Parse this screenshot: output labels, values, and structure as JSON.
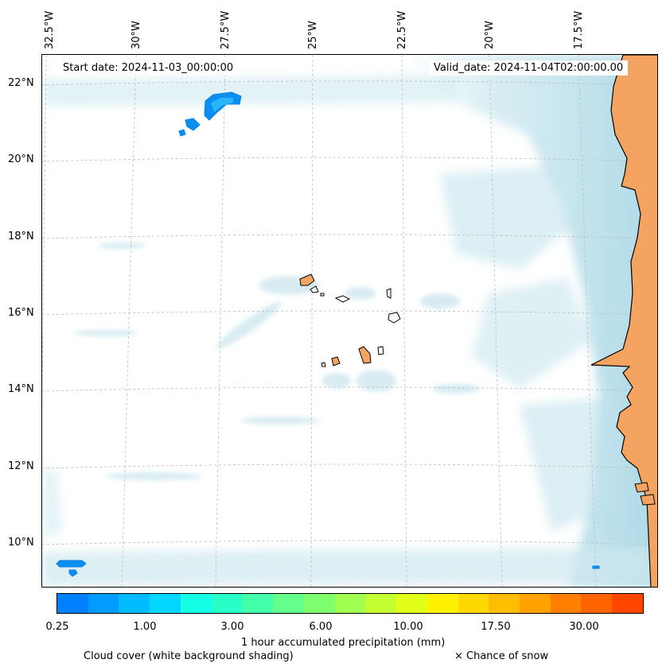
{
  "map": {
    "start_date": "Start date: 2024-11-03_00:00:00",
    "valid_date": "Valid_date: 2024-11-04T02:00:00.00",
    "lon_labels": [
      "32.5°W",
      "30°W",
      "27.5°W",
      "25°W",
      "22.5°W",
      "20°W",
      "17.5°W"
    ],
    "lat_labels": [
      "22°N",
      "20°N",
      "18°N",
      "16°N",
      "14°N",
      "12°N",
      "10°N"
    ],
    "colors": {
      "land": "#f4a460",
      "cloud": "#bfe2ec",
      "precip_light": "#0a8ff0",
      "precip_mid": "#29b6f6",
      "gridline": "#bbbbbb"
    }
  },
  "colorbar": {
    "colors": [
      "#0080ff",
      "#009cff",
      "#00bbff",
      "#00d6ff",
      "#14ffe6",
      "#28ffc8",
      "#44ffaa",
      "#63ff8a",
      "#7fff6e",
      "#a0ff50",
      "#c4ff32",
      "#e2ff1a",
      "#fff200",
      "#ffd800",
      "#ffbd00",
      "#ffa200",
      "#ff8000",
      "#ff6400",
      "#ff4700"
    ],
    "tick_labels": [
      "0.25",
      "1.00",
      "3.00",
      "6.00",
      "10.00",
      "17.50",
      "30.00"
    ],
    "label": "1 hour accumulated precipitation (mm)"
  },
  "footer": {
    "cloud_note": "Cloud cover (white background shading)",
    "snow_note": "× Chance of snow"
  }
}
